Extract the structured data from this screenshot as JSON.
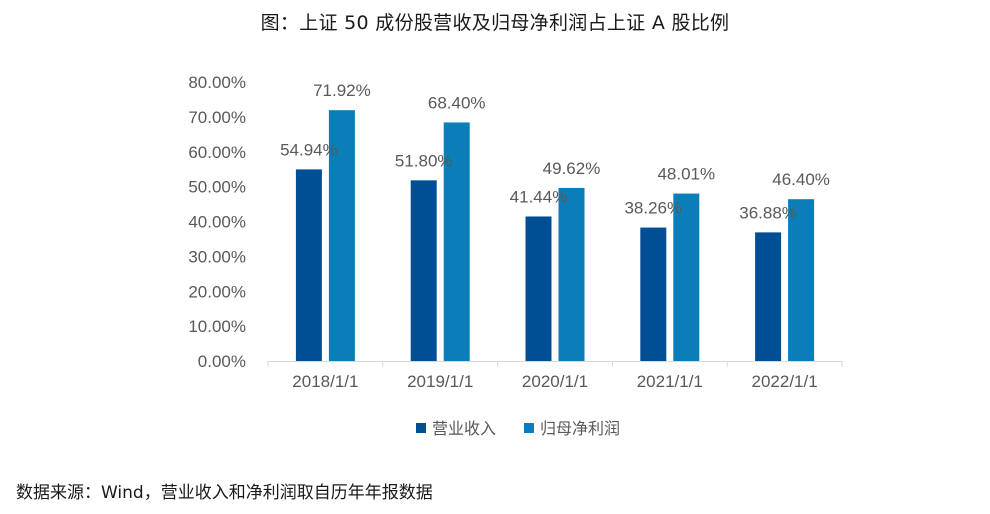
{
  "title": "图：上证 50 成份股营收及归母净利润占上证 A 股比例",
  "source_note": "数据来源：Wind，营业收入和净利润取自历年年报数据",
  "chart_data": {
    "type": "bar",
    "categories": [
      "2018/1/1",
      "2019/1/1",
      "2020/1/1",
      "2021/1/1",
      "2022/1/1"
    ],
    "series": [
      {
        "name": "营业收入",
        "values": [
          54.94,
          51.8,
          41.44,
          38.26,
          36.88
        ],
        "labels": [
          "54.94%",
          "51.80%",
          "41.44%",
          "38.26%",
          "36.88%"
        ],
        "color": "#004F94"
      },
      {
        "name": "归母净利润",
        "values": [
          71.92,
          68.4,
          49.62,
          48.01,
          46.4
        ],
        "labels": [
          "71.92%",
          "68.40%",
          "49.62%",
          "48.01%",
          "46.40%"
        ],
        "color": "#0A7EB8"
      }
    ],
    "ylim": [
      0,
      80
    ],
    "yticks": [
      "0.00%",
      "10.00%",
      "20.00%",
      "30.00%",
      "40.00%",
      "50.00%",
      "60.00%",
      "70.00%",
      "80.00%"
    ],
    "ytick_values": [
      0,
      10,
      20,
      30,
      40,
      50,
      60,
      70,
      80
    ],
    "xlabel": "",
    "ylabel": "",
    "grid": false,
    "legend_position": "bottom-center",
    "colors": {
      "axis_line": "#D9D9D9",
      "tick_text": "#595959",
      "label_text": "#595959",
      "legend_text": "#595959"
    }
  }
}
